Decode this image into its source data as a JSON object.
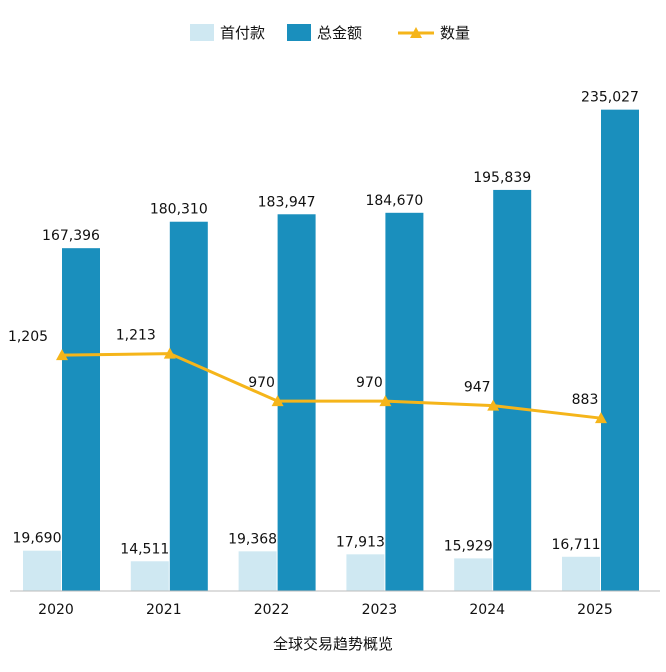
{
  "chart_data": {
    "type": "bar",
    "title": "全球交易趋势概览",
    "categories": [
      "2020",
      "2021",
      "2022",
      "2023",
      "2024",
      "2025"
    ],
    "series": [
      {
        "name": "首付款",
        "kind": "bar",
        "axis": "primary",
        "color": "#cfe8f2",
        "values": [
          19690,
          14511,
          19368,
          17913,
          15929,
          16711
        ],
        "labels": [
          "19,690",
          "14,511",
          "19,368",
          "17,913",
          "15,929",
          "16,711"
        ]
      },
      {
        "name": "总金额",
        "kind": "bar",
        "axis": "primary",
        "color": "#1a8fbd",
        "values": [
          167396,
          180310,
          183947,
          184670,
          195839,
          235027
        ],
        "labels": [
          "167,396",
          "180,310",
          "183,947",
          "184,670",
          "195,839",
          "235,027"
        ]
      },
      {
        "name": "数量",
        "kind": "line",
        "axis": "secondary",
        "color": "#f5b51a",
        "values": [
          1205,
          1213,
          970,
          970,
          947,
          883
        ],
        "labels": [
          "1,205",
          "1,213",
          "970",
          "970",
          "947",
          "883"
        ]
      }
    ],
    "ylim": [
      0,
      250000
    ],
    "y2lim": [
      0,
      2616
    ],
    "legend": "top-center",
    "grid": false
  }
}
